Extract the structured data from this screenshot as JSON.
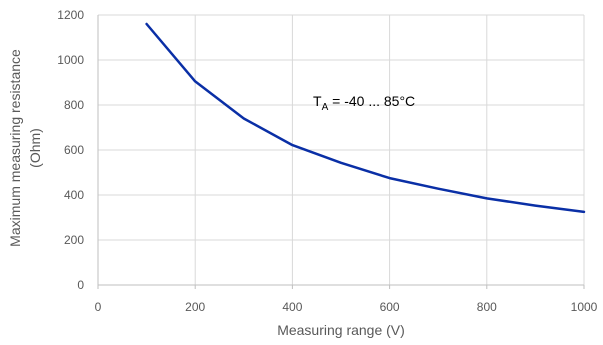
{
  "chart_data": {
    "type": "line",
    "title": "",
    "xlabel": "Measuring range (V)",
    "ylabel_lines": [
      "Maximum measuring resistance",
      "(Ohm)"
    ],
    "xlim": [
      0,
      1000
    ],
    "ylim": [
      0,
      1200
    ],
    "xticks": [
      0,
      200,
      400,
      600,
      800,
      1000
    ],
    "yticks": [
      0,
      200,
      400,
      600,
      800,
      1000,
      1200
    ],
    "grid": true,
    "series": [
      {
        "color": "#0a2fa6",
        "x": [
          100,
          200,
          300,
          400,
          500,
          600,
          700,
          800,
          900,
          1000
        ],
        "y": [
          1160,
          905,
          740,
          622,
          543,
          475,
          428,
          385,
          353,
          325
        ]
      }
    ],
    "annotation": {
      "base": "T",
      "sub": "A",
      "text": " = -40 ... 85°C"
    }
  }
}
